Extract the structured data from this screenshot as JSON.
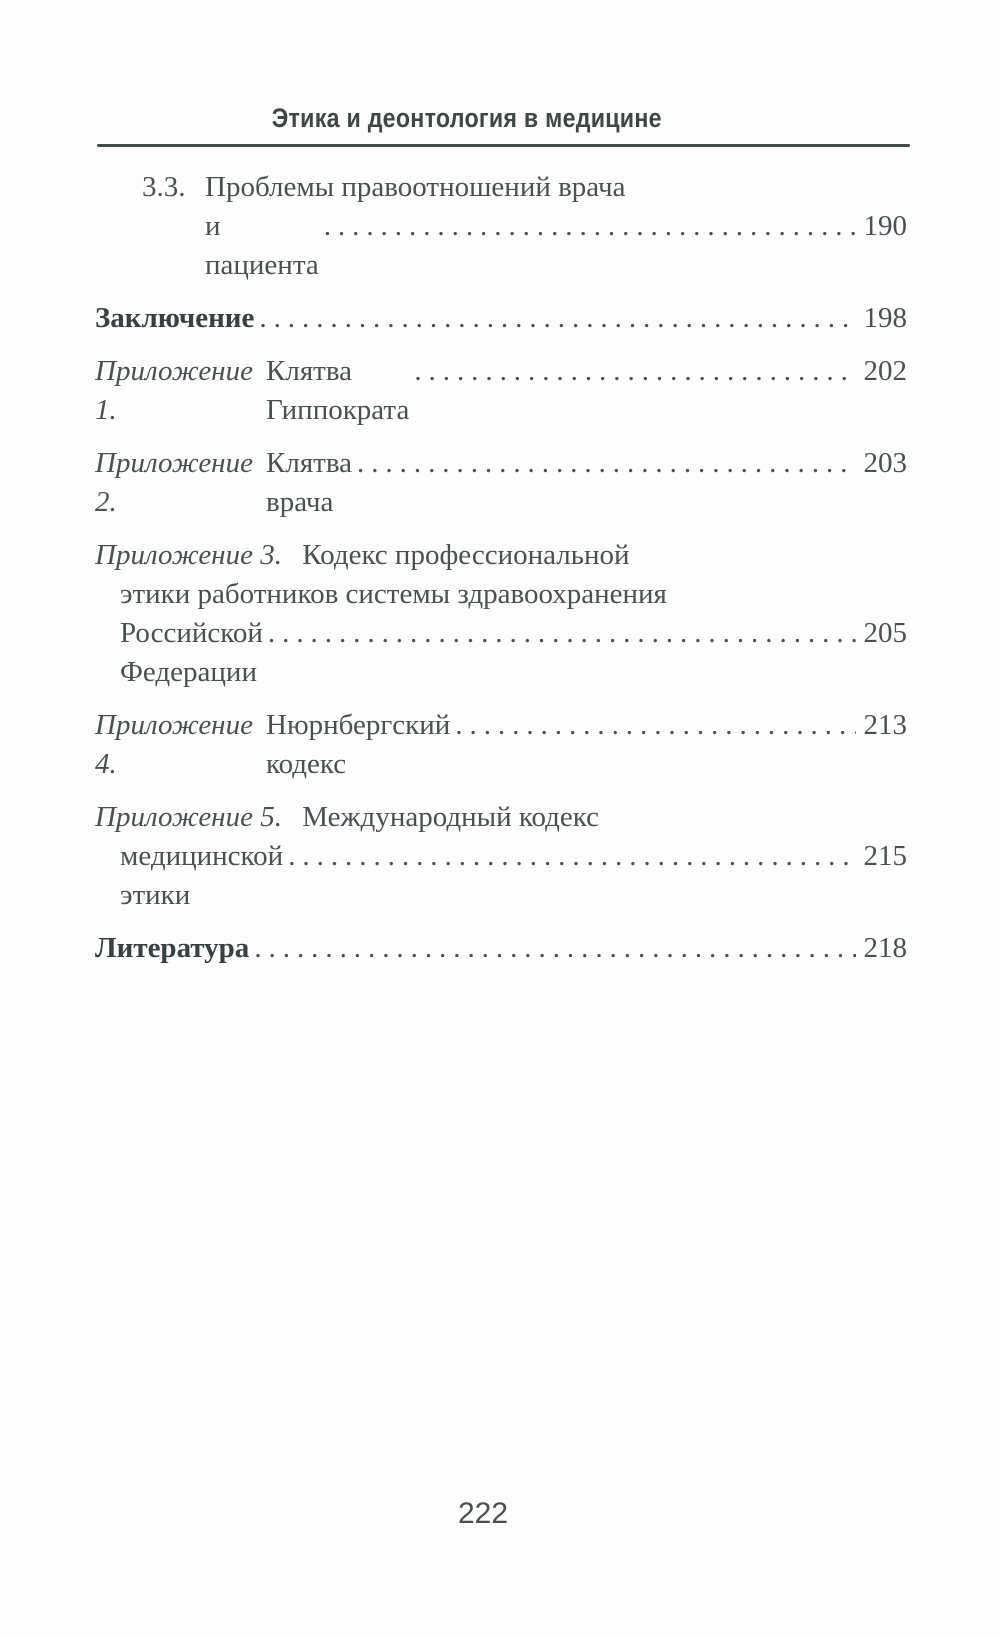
{
  "page": {
    "running_header": "Этика и деонтология в медицине",
    "folio": "222"
  },
  "colors": {
    "background": "#fdfdfd",
    "text": "#4b5152",
    "bold_text": "#394041",
    "rule": "#434a49"
  },
  "toc": {
    "entries": [
      {
        "number": "3.3.",
        "title": "Проблемы правоотношений врача",
        "continuation": "и пациента",
        "page": "190"
      },
      {
        "title": "Заключение",
        "page": "198"
      },
      {
        "label": "Приложение 1.",
        "title": "Клятва Гиппократа",
        "page": "202"
      },
      {
        "label": "Приложение 2.",
        "title": "Клятва врача",
        "page": "203"
      },
      {
        "label": "Приложение 3.",
        "title": "Кодекс профессиональной",
        "continuation": "этики работников системы здравоохранения",
        "last_line": "Российской Федерации",
        "page": "205"
      },
      {
        "label": "Приложение 4.",
        "title": "Нюрнбергский кодекс",
        "page": "213"
      },
      {
        "label": "Приложение 5.",
        "title": "Международный кодекс",
        "last_line": "медицинской этики",
        "page": "215"
      },
      {
        "title": "Литература",
        "page": "218"
      }
    ]
  }
}
